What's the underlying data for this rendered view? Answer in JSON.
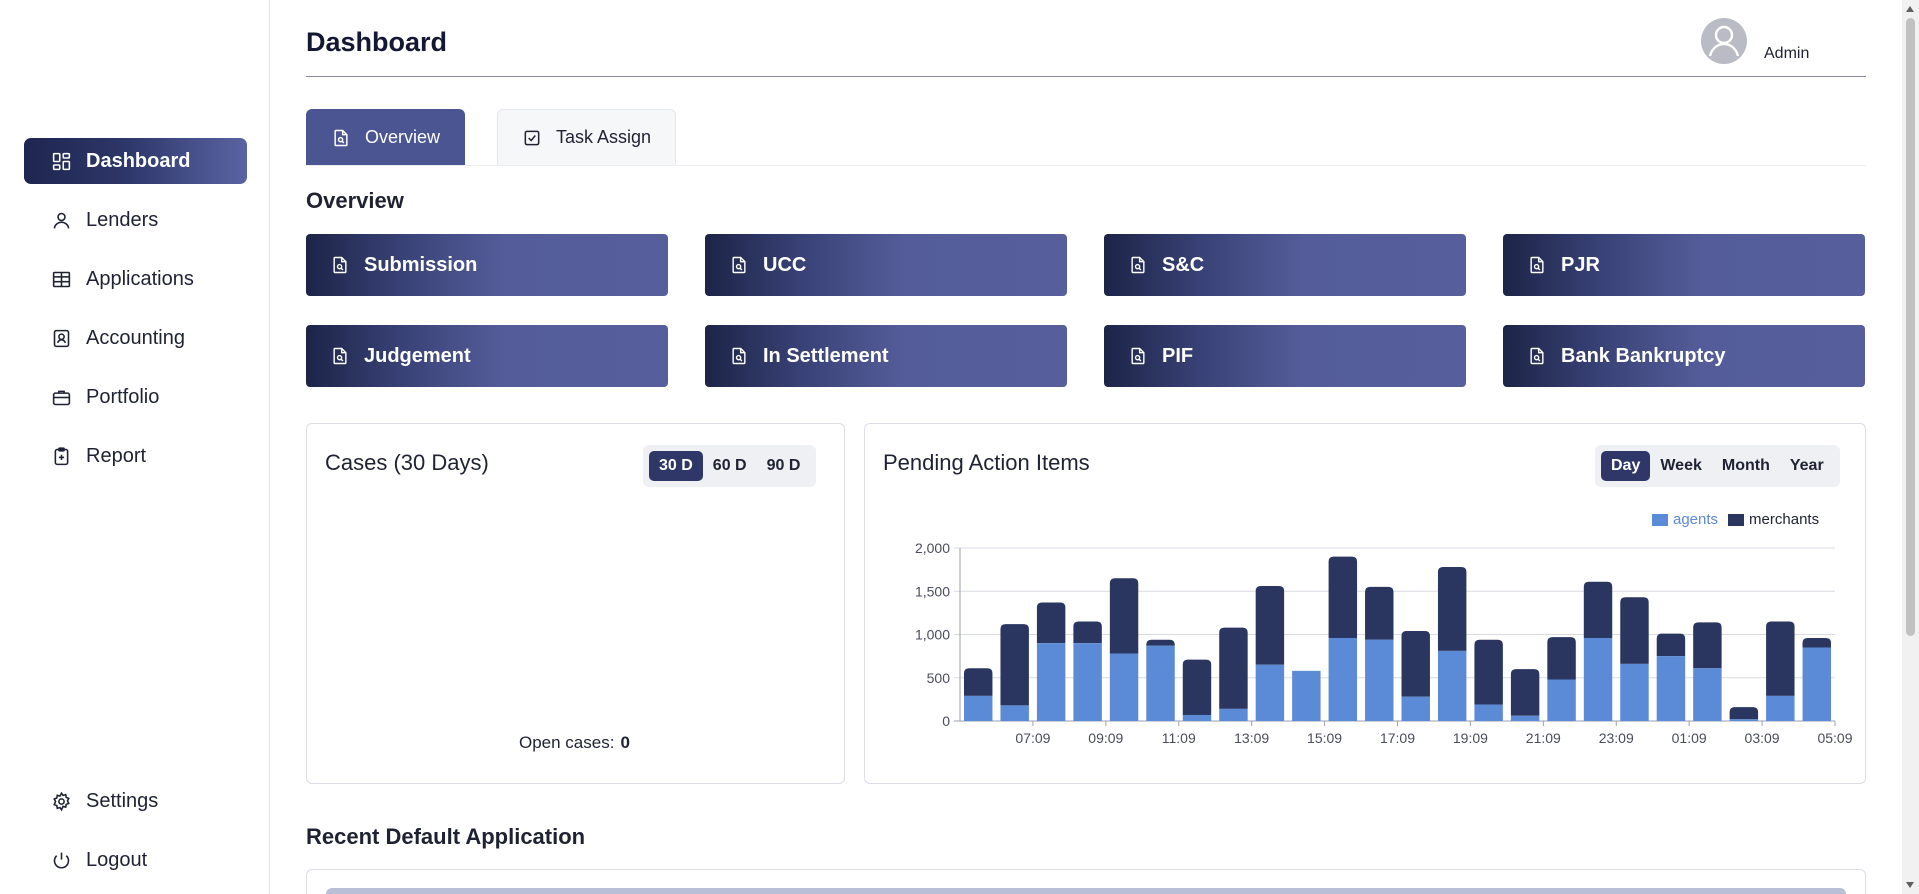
{
  "header": {
    "title": "Dashboard",
    "user_name": "Admin"
  },
  "sidebar": {
    "items": [
      {
        "label": "Dashboard",
        "icon": "dashboard-icon",
        "active": true
      },
      {
        "label": "Lenders",
        "icon": "user-icon"
      },
      {
        "label": "Applications",
        "icon": "table-icon"
      },
      {
        "label": "Accounting",
        "icon": "contact-book-icon"
      },
      {
        "label": "Portfolio",
        "icon": "briefcase-icon"
      },
      {
        "label": "Report",
        "icon": "clipboard-plus-icon"
      }
    ],
    "bottom_items": [
      {
        "label": "Settings",
        "icon": "gear-icon"
      },
      {
        "label": "Logout",
        "icon": "power-icon"
      }
    ]
  },
  "tabs": [
    {
      "label": "Overview",
      "icon": "document-search-icon",
      "active": true
    },
    {
      "label": "Task Assign",
      "icon": "checkbox-icon"
    }
  ],
  "overview": {
    "title": "Overview",
    "categories": [
      "Submission",
      "UCC",
      "S&C",
      "PJR",
      "Judgement",
      "In Settlement",
      "PIF",
      "Bank Bankruptcy"
    ]
  },
  "cases_card": {
    "title": "Cases (30 Days)",
    "ranges": [
      "30 D",
      "60 D",
      "90 D"
    ],
    "active_range": "30 D",
    "open_cases_label": "Open cases:",
    "open_cases_value": "0"
  },
  "pending_card": {
    "title": "Pending Action Items",
    "ranges": [
      "Day",
      "Week",
      "Month",
      "Year"
    ],
    "active_range": "Day"
  },
  "recent": {
    "title": "Recent Default Application"
  },
  "colors": {
    "agents": "#5b8ad6",
    "merchants": "#2a3560",
    "accent": "#2e3768"
  },
  "chart_data": {
    "type": "bar",
    "stacked": true,
    "x": [
      "06:09",
      "07:09",
      "08:09",
      "09:09",
      "10:09",
      "11:09",
      "12:09",
      "13:09",
      "14:09",
      "15:09",
      "16:09",
      "17:09",
      "18:09",
      "19:09",
      "20:09",
      "21:09",
      "22:09",
      "23:09",
      "00:09",
      "01:09",
      "02:09",
      "03:09",
      "04:09",
      "05:09"
    ],
    "x_tick_labels": [
      "07:09",
      "09:09",
      "11:09",
      "13:09",
      "15:09",
      "17:09",
      "19:09",
      "21:09",
      "23:09",
      "01:09",
      "03:09",
      "05:09"
    ],
    "series": [
      {
        "name": "agents",
        "values": [
          290,
          180,
          900,
          900,
          780,
          870,
          70,
          140,
          650,
          580,
          960,
          940,
          280,
          810,
          190,
          60,
          480,
          960,
          660,
          750,
          610,
          20,
          290,
          850
        ]
      },
      {
        "name": "merchants",
        "values": [
          320,
          940,
          470,
          250,
          870,
          70,
          640,
          940,
          910,
          0,
          940,
          610,
          760,
          970,
          750,
          540,
          490,
          650,
          770,
          260,
          530,
          140,
          860,
          110
        ]
      }
    ],
    "y_ticks": [
      "0",
      "500",
      "1,000",
      "1,500",
      "2,000"
    ],
    "ylim": [
      0,
      2000
    ],
    "grid": true,
    "legend_position": "top-right"
  }
}
